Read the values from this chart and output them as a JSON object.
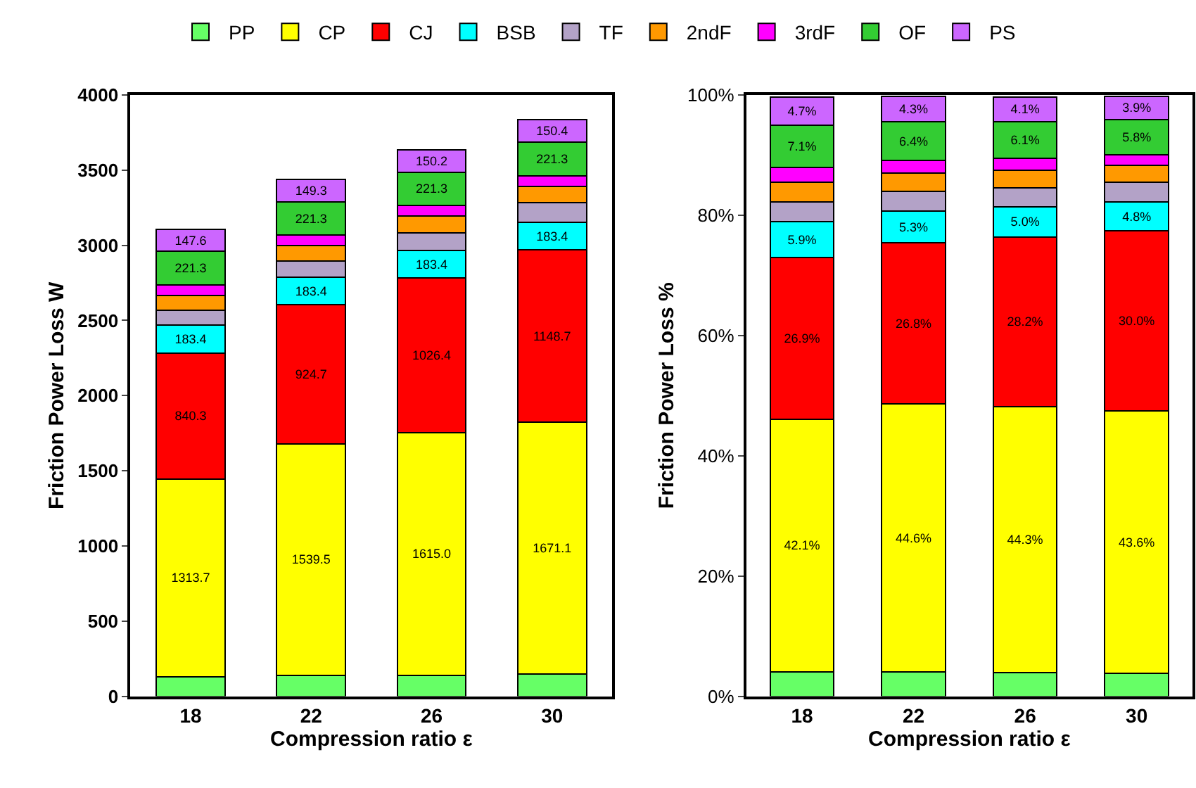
{
  "chart_data": [
    {
      "type": "bar",
      "stacked": true,
      "categories": [
        "18",
        "22",
        "26",
        "30"
      ],
      "xlabel": "Compression ratio ε",
      "ylabel": "Friction Power Loss W",
      "ylim": [
        0,
        4000
      ],
      "yticks": [
        0,
        500,
        1000,
        1500,
        2000,
        2500,
        3000,
        3500,
        4000
      ],
      "legend": "top",
      "series": [
        {
          "name": "PP",
          "color": "#66ff66",
          "values": [
            130,
            140,
            140,
            150
          ]
        },
        {
          "name": "CP",
          "color": "#ffff00",
          "values": [
            1313.7,
            1539.5,
            1615.0,
            1671.1
          ],
          "value_labels": [
            "1313.7",
            "1539.5",
            "1615.0",
            "1671.1"
          ]
        },
        {
          "name": "CJ",
          "color": "#ff0000",
          "values": [
            840.3,
            924.7,
            1026.4,
            1148.7
          ],
          "value_labels": [
            "840.3",
            "924.7",
            "1026.4",
            "1148.7"
          ]
        },
        {
          "name": "BSB",
          "color": "#00ffff",
          "values": [
            183.4,
            183.4,
            183.4,
            183.4
          ],
          "value_labels": [
            "183.4",
            "183.4",
            "183.4",
            "183.4"
          ]
        },
        {
          "name": "TF",
          "color": "#b3a2c7",
          "values": [
            100,
            110,
            120,
            130
          ]
        },
        {
          "name": "2ndF",
          "color": "#ff9900",
          "values": [
            100,
            100,
            110,
            110
          ]
        },
        {
          "name": "3rdF",
          "color": "#ff00ff",
          "values": [
            70,
            70,
            70,
            70
          ]
        },
        {
          "name": "OF",
          "color": "#33cc33",
          "values": [
            221.3,
            221.3,
            221.3,
            221.3
          ],
          "value_labels": [
            "221.3",
            "221.3",
            "221.3",
            "221.3"
          ]
        },
        {
          "name": "PS",
          "color": "#cc66ff",
          "values": [
            147.6,
            149.3,
            150.2,
            150.4
          ],
          "value_labels": [
            "147.6",
            "149.3",
            "150.2",
            "150.4"
          ]
        }
      ]
    },
    {
      "type": "bar",
      "stacked": true,
      "categories": [
        "18",
        "22",
        "26",
        "30"
      ],
      "xlabel": "Compression ratio ε",
      "ylabel": "Friction Power Loss %",
      "ylim": [
        0,
        100
      ],
      "yticks": [
        {
          "value": 0,
          "label": "0%"
        },
        {
          "value": 20,
          "label": "20%"
        },
        {
          "value": 40,
          "label": "40%"
        },
        {
          "value": 60,
          "label": "60%"
        },
        {
          "value": 80,
          "label": "80%"
        },
        {
          "value": 100,
          "label": "100%"
        }
      ],
      "legend": "top",
      "series": [
        {
          "name": "PP",
          "color": "#66ff66",
          "values": [
            4.0,
            4.0,
            3.9,
            3.8
          ]
        },
        {
          "name": "CP",
          "color": "#ffff00",
          "values": [
            42.1,
            44.6,
            44.3,
            43.6
          ],
          "value_labels": [
            "42.1%",
            "44.6%",
            "44.3%",
            "43.6%"
          ]
        },
        {
          "name": "CJ",
          "color": "#ff0000",
          "values": [
            26.9,
            26.8,
            28.2,
            30.0
          ],
          "value_labels": [
            "26.9%",
            "26.8%",
            "28.2%",
            "30.0%"
          ]
        },
        {
          "name": "BSB",
          "color": "#00ffff",
          "values": [
            5.9,
            5.3,
            5.0,
            4.8
          ],
          "value_labels": [
            "5.9%",
            "5.3%",
            "5.0%",
            "4.8%"
          ]
        },
        {
          "name": "TF",
          "color": "#b3a2c7",
          "values": [
            3.3,
            3.3,
            3.2,
            3.3
          ]
        },
        {
          "name": "2ndF",
          "color": "#ff9900",
          "values": [
            3.3,
            3.0,
            2.9,
            2.8
          ]
        },
        {
          "name": "3rdF",
          "color": "#ff00ff",
          "values": [
            2.4,
            2.1,
            2.0,
            1.8
          ]
        },
        {
          "name": "OF",
          "color": "#33cc33",
          "values": [
            7.1,
            6.4,
            6.1,
            5.8
          ],
          "value_labels": [
            "7.1%",
            "6.4%",
            "6.1%",
            "5.8%"
          ]
        },
        {
          "name": "PS",
          "color": "#cc66ff",
          "values": [
            4.7,
            4.3,
            4.1,
            3.9
          ],
          "value_labels": [
            "4.7%",
            "4.3%",
            "4.1%",
            "3.9%"
          ]
        }
      ]
    }
  ]
}
